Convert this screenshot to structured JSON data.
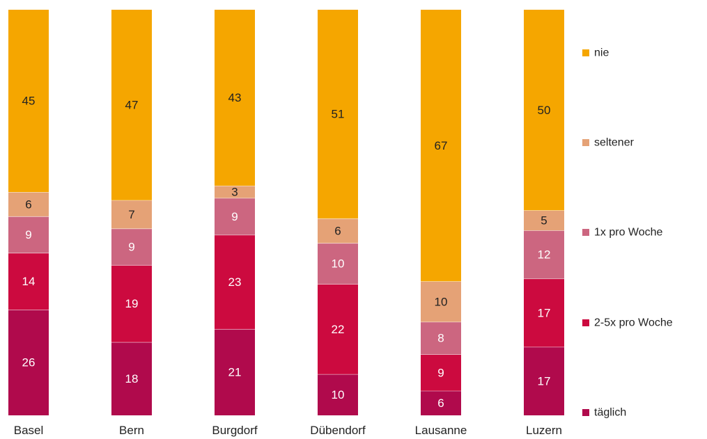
{
  "chart_data": {
    "type": "bar",
    "stacked": true,
    "normalized_to_percent": true,
    "categories": [
      "Basel",
      "Bern",
      "Burgdorf",
      "Dübendorf",
      "Lausanne",
      "Luzern"
    ],
    "series": [
      {
        "name": "täglich",
        "color": "#b00a4c",
        "label_color": "#ffffff",
        "values": [
          26,
          18,
          21,
          10,
          6,
          17
        ]
      },
      {
        "name": "2-5x pro Woche",
        "color": "#cc0a3f",
        "label_color": "#ffffff",
        "values": [
          14,
          19,
          23,
          22,
          9,
          17
        ]
      },
      {
        "name": "1x pro Woche",
        "color": "#cc6680",
        "label_color": "#ffffff",
        "values": [
          9,
          9,
          9,
          10,
          8,
          12
        ]
      },
      {
        "name": "seltener",
        "color": "#e5a276",
        "label_color": "#222222",
        "values": [
          6,
          7,
          3,
          6,
          10,
          5
        ]
      },
      {
        "name": "nie",
        "color": "#f5a600",
        "label_color": "#222222",
        "values": [
          45,
          47,
          43,
          51,
          67,
          50
        ]
      }
    ],
    "ylim": [
      0,
      100
    ],
    "grid": false,
    "legend_position": "right",
    "legend_order": [
      "nie",
      "seltener",
      "1x pro Woche",
      "2-5x pro Woche",
      "täglich"
    ],
    "title": "",
    "xlabel": "",
    "ylabel": ""
  }
}
